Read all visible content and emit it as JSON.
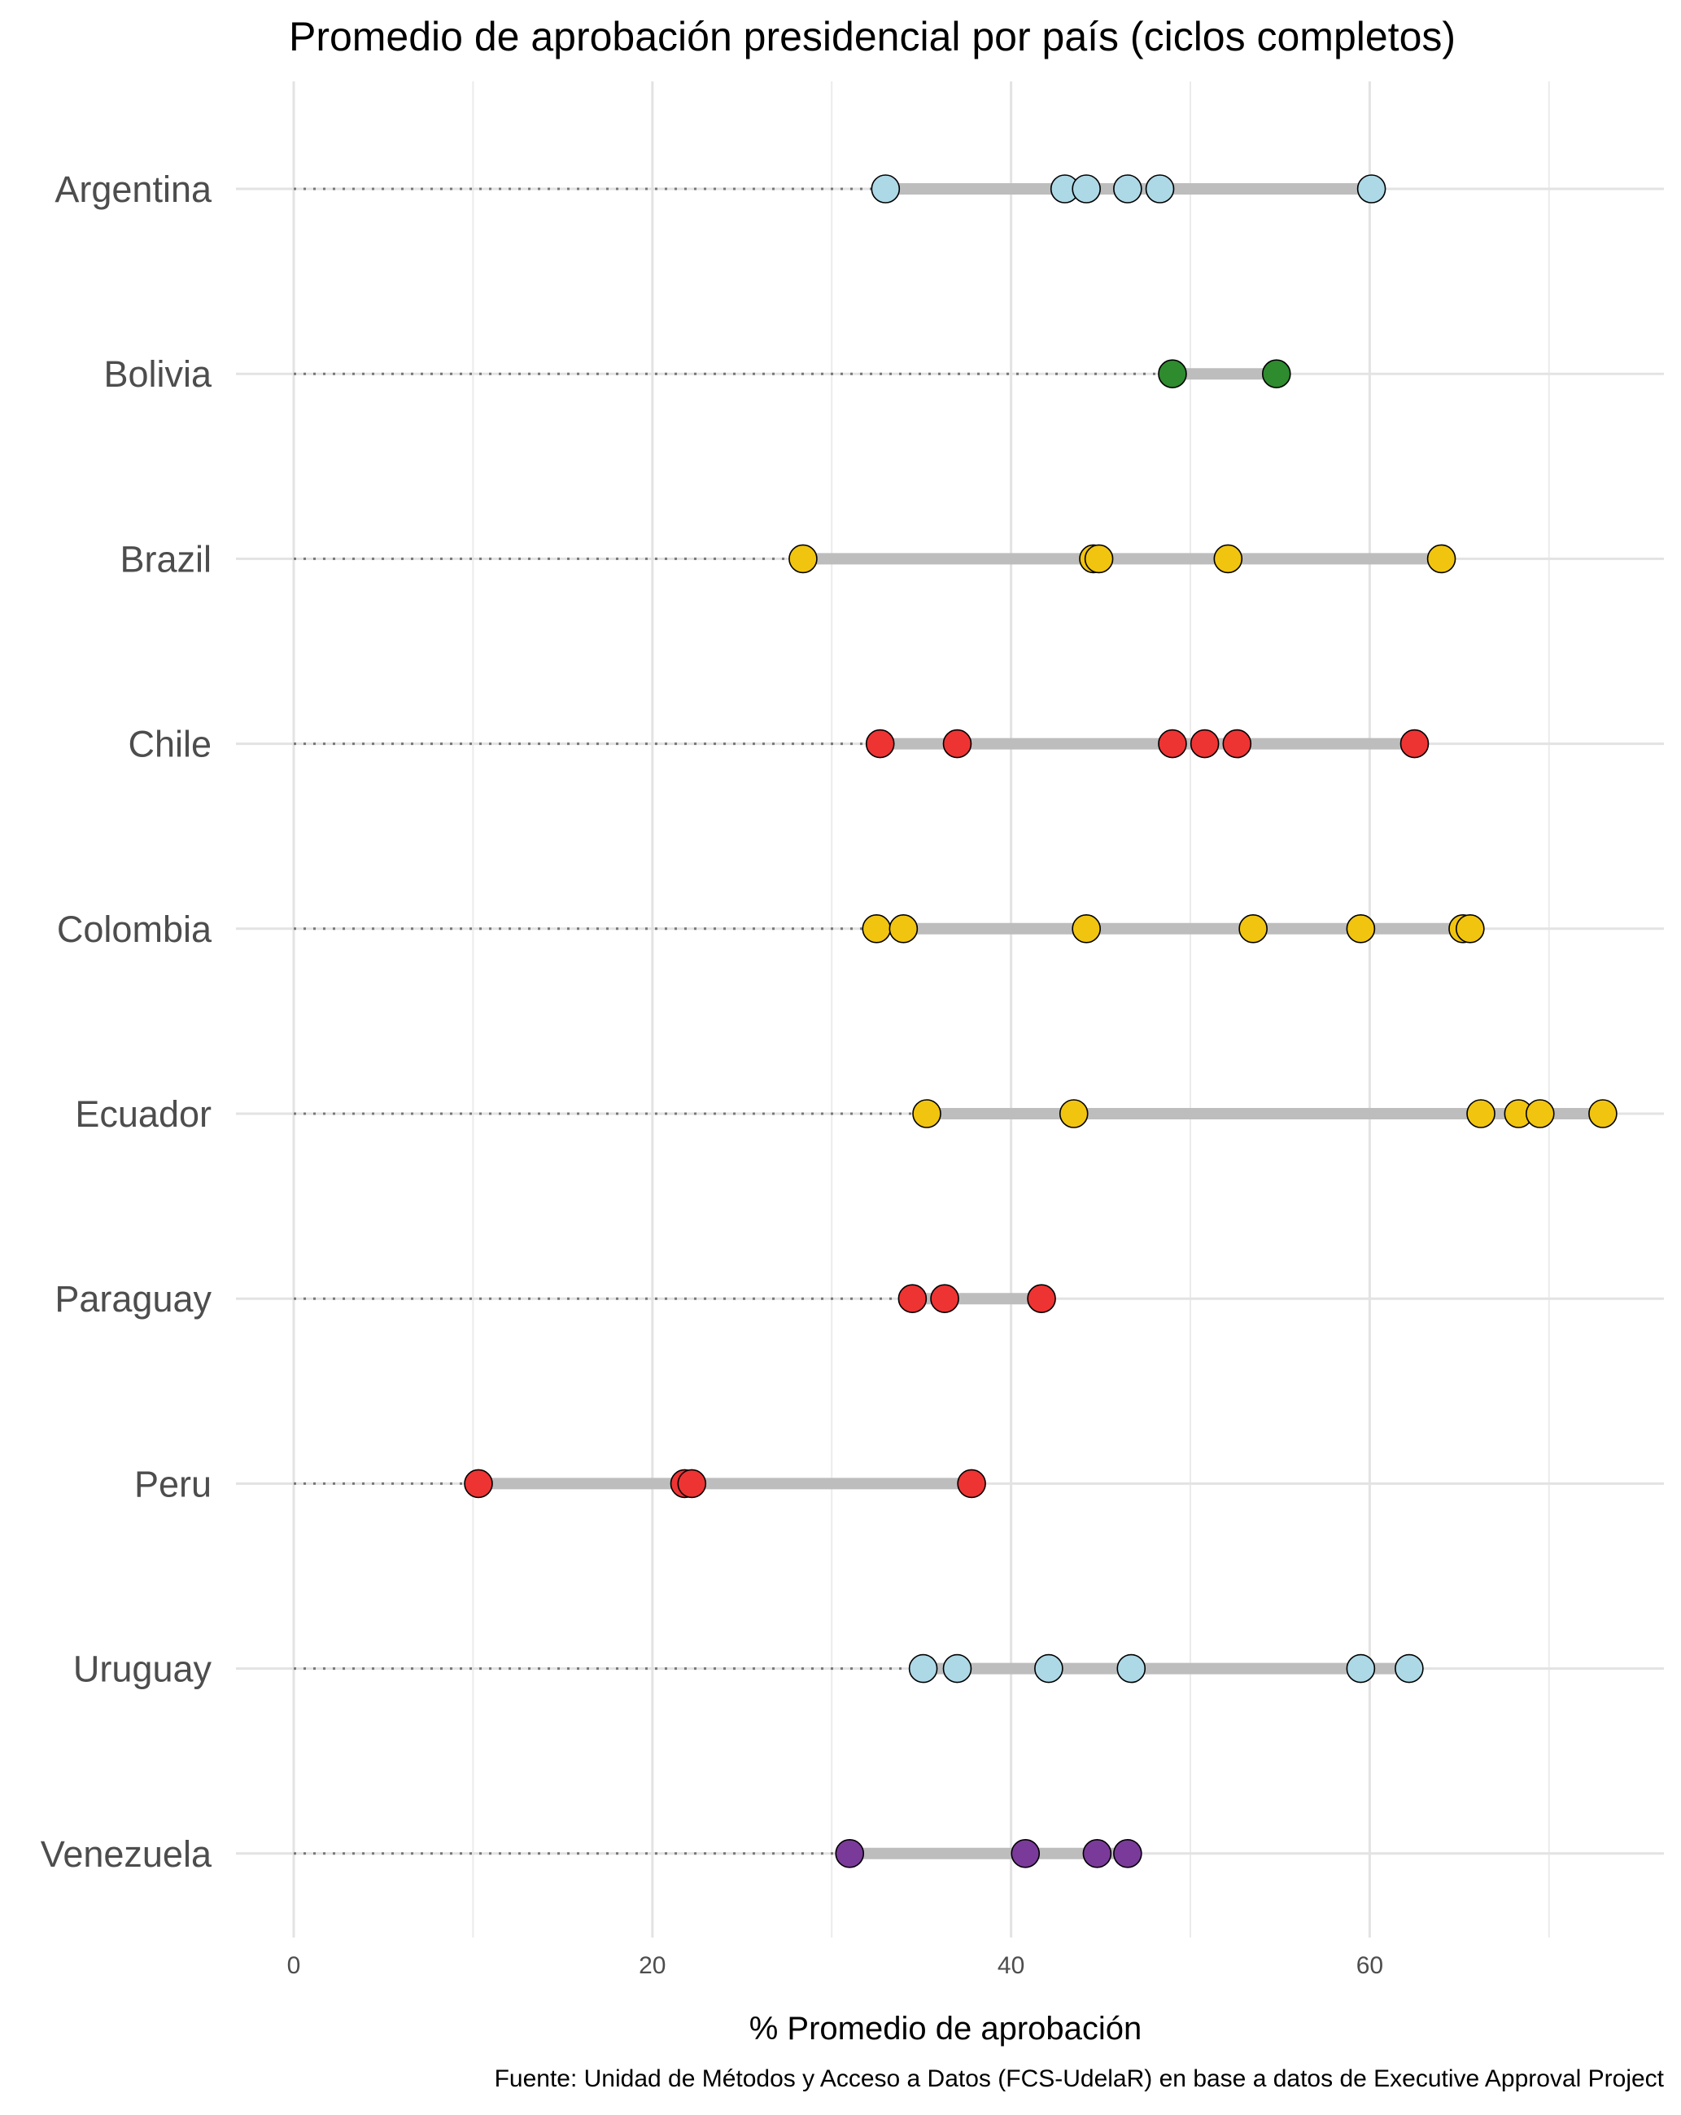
{
  "chart_data": {
    "type": "scatter",
    "title": "Promedio de aprobación presidencial por país (ciclos completos)",
    "xlabel": "% Promedio de aprobación",
    "ylabel": "",
    "caption": "Fuente: Unidad de Métodos y Acceso a Datos (FCS-UdelaR) en base a datos de Executive Approval Project",
    "xlim": [
      0,
      74
    ],
    "xticks": [
      "0",
      "20",
      "40",
      "60"
    ],
    "grid": true,
    "legend": "none",
    "countries": [
      {
        "name": "Argentina",
        "color": "#add8e6",
        "values": [
          33.0,
          43.0,
          44.2,
          46.5,
          48.3,
          60.1
        ]
      },
      {
        "name": "Bolivia",
        "color": "#2e8b2e",
        "values": [
          49.0,
          54.8
        ]
      },
      {
        "name": "Brazil",
        "color": "#f1c40f",
        "values": [
          28.4,
          44.6,
          44.9,
          52.1,
          64.0
        ]
      },
      {
        "name": "Chile",
        "color": "#ee3333",
        "values": [
          32.7,
          37.0,
          49.0,
          50.8,
          52.6,
          62.5
        ]
      },
      {
        "name": "Colombia",
        "color": "#f1c40f",
        "values": [
          32.5,
          34.0,
          44.2,
          53.5,
          59.5,
          65.2,
          65.6
        ]
      },
      {
        "name": "Ecuador",
        "color": "#f1c40f",
        "values": [
          35.3,
          43.5,
          66.2,
          68.3,
          69.5,
          73.0
        ]
      },
      {
        "name": "Paraguay",
        "color": "#ee3333",
        "values": [
          34.5,
          36.3,
          41.7
        ]
      },
      {
        "name": "Peru",
        "color": "#ee3333",
        "values": [
          10.3,
          21.8,
          22.2,
          37.8
        ]
      },
      {
        "name": "Uruguay",
        "color": "#add8e6",
        "values": [
          35.1,
          37.0,
          42.1,
          46.7,
          59.5,
          62.2
        ]
      },
      {
        "name": "Venezuela",
        "color": "#7a3a9a",
        "values": [
          31.0,
          40.8,
          44.8,
          46.5
        ]
      }
    ]
  }
}
